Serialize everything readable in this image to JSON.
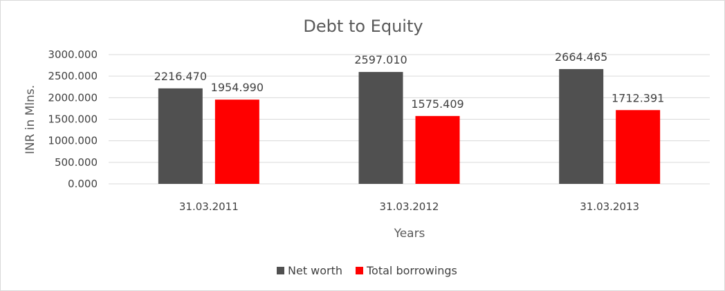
{
  "chart_data": {
    "type": "bar",
    "title": "Debt to Equity",
    "xlabel": "Years",
    "ylabel": "INR in Mlns.",
    "categories": [
      "31.03.2011",
      "31.03.2012",
      "31.03.2013"
    ],
    "series": [
      {
        "name": "Net worth",
        "color": "#505050",
        "values": [
          2216.47,
          2597.01,
          2664.465
        ],
        "labels": [
          "2216.470",
          "2597.010",
          "2664.465"
        ]
      },
      {
        "name": "Total borrowings",
        "color": "#ff0000",
        "values": [
          1954.99,
          1575.409,
          1712.391
        ],
        "labels": [
          "1954.990",
          "1575.409",
          "1712.391"
        ]
      }
    ],
    "ylim": [
      0,
      3000
    ],
    "yticks": [
      {
        "value": 0,
        "label": "0.000"
      },
      {
        "value": 500,
        "label": "500.000"
      },
      {
        "value": 1000,
        "label": "1000.000"
      },
      {
        "value": 1500,
        "label": "1500.000"
      },
      {
        "value": 2000,
        "label": "2000.000"
      },
      {
        "value": 2500,
        "label": "2500.000"
      },
      {
        "value": 3000,
        "label": "3000.000"
      }
    ],
    "grid": true,
    "legend": "bottom"
  }
}
